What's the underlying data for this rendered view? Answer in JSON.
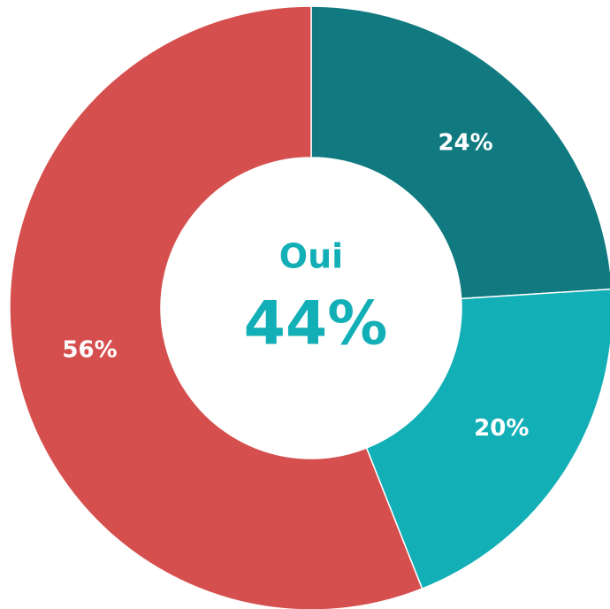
{
  "chart_data": {
    "type": "donut",
    "categories": [
      null,
      null,
      null
    ],
    "values": [
      24,
      20,
      56
    ],
    "value_labels": [
      "24%",
      "20%",
      "56%"
    ],
    "colors": [
      "#117a80",
      "#13afb7",
      "#d64f4f"
    ],
    "annotations": [
      "Oui",
      "44%"
    ]
  }
}
